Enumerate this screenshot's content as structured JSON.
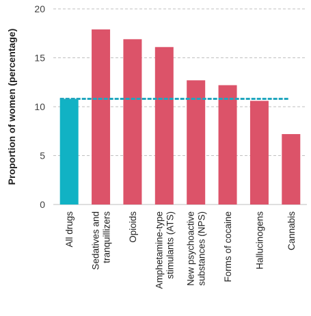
{
  "chart_data": {
    "type": "bar",
    "title": "",
    "xlabel": "",
    "ylabel": "Proportion of women (percentage)",
    "ylim": [
      0,
      20
    ],
    "yticks": [
      0,
      5,
      10,
      15,
      20
    ],
    "grid": "horizontal dashed",
    "categories": [
      "All drugs",
      "Sedatives and tranquillizers",
      "Opioids",
      "Amphetamine-type stimulants (ATS)",
      "New psychoactive substances (NPS)",
      "Forms of cocaine",
      "Hallucinogens",
      "Cannabis"
    ],
    "category_lines": [
      [
        "All drugs"
      ],
      [
        "Sedatives and",
        "tranquillizers"
      ],
      [
        "Opioids"
      ],
      [
        "Amphetamine-type",
        "stimulants (ATS)"
      ],
      [
        "New psychoactive",
        "substances (NPS)"
      ],
      [
        "Forms of cocaine"
      ],
      [
        "Hallucinogens"
      ],
      [
        "Cannabis"
      ]
    ],
    "values": [
      10.8,
      17.9,
      16.9,
      16.1,
      12.7,
      12.2,
      10.6,
      7.2
    ],
    "reference_line": {
      "value": 10.8,
      "style": "dashed"
    },
    "colors": {
      "highlight_bar": "#11b2c4",
      "bar": "#dc5369",
      "reference_line": "#21a6be",
      "grid": "#bfbfbf"
    }
  }
}
